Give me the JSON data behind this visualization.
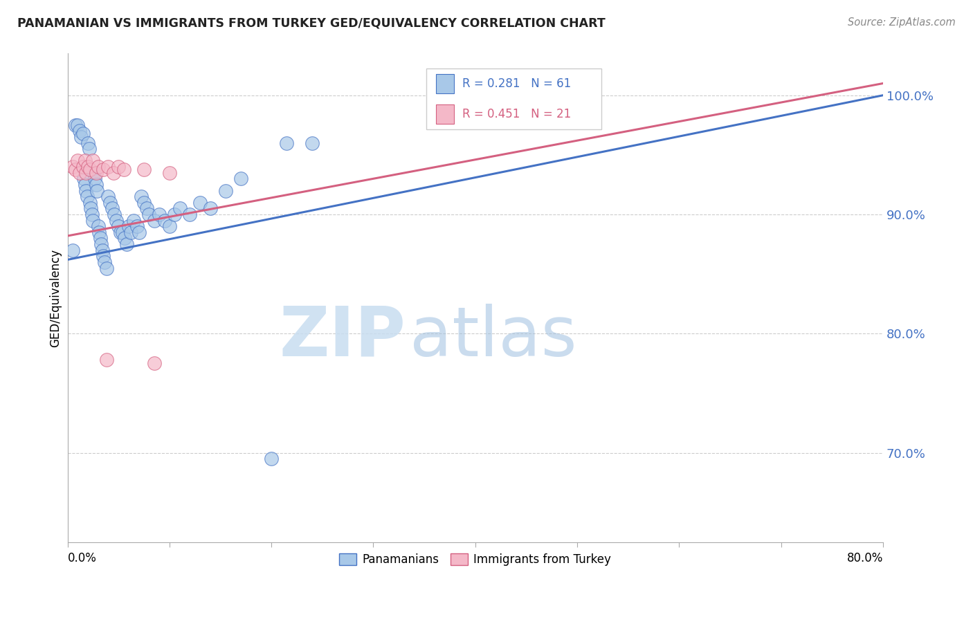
{
  "title": "PANAMANIAN VS IMMIGRANTS FROM TURKEY GED/EQUIVALENCY CORRELATION CHART",
  "source": "Source: ZipAtlas.com",
  "ylabel": "GED/Equivalency",
  "xlim": [
    0.0,
    0.8
  ],
  "ylim": [
    0.625,
    1.035
  ],
  "yticks": [
    0.7,
    0.8,
    0.9,
    1.0
  ],
  "ytick_labels": [
    "70.0%",
    "80.0%",
    "90.0%",
    "100.0%"
  ],
  "blue_color": "#a8c8e8",
  "pink_color": "#f4b8c8",
  "blue_line_color": "#4472c4",
  "pink_line_color": "#d46080",
  "blue_points_x": [
    0.005,
    0.008,
    0.01,
    0.012,
    0.013,
    0.015,
    0.016,
    0.017,
    0.018,
    0.019,
    0.02,
    0.021,
    0.022,
    0.023,
    0.024,
    0.025,
    0.026,
    0.027,
    0.028,
    0.029,
    0.03,
    0.031,
    0.032,
    0.033,
    0.034,
    0.035,
    0.036,
    0.038,
    0.04,
    0.042,
    0.044,
    0.046,
    0.048,
    0.05,
    0.052,
    0.054,
    0.056,
    0.058,
    0.06,
    0.062,
    0.065,
    0.068,
    0.07,
    0.072,
    0.075,
    0.078,
    0.08,
    0.085,
    0.09,
    0.095,
    0.1,
    0.105,
    0.11,
    0.12,
    0.13,
    0.14,
    0.155,
    0.17,
    0.2,
    0.215,
    0.24
  ],
  "blue_points_y": [
    0.87,
    0.975,
    0.975,
    0.97,
    0.965,
    0.968,
    0.93,
    0.925,
    0.92,
    0.915,
    0.96,
    0.955,
    0.91,
    0.905,
    0.9,
    0.895,
    0.935,
    0.93,
    0.925,
    0.92,
    0.89,
    0.885,
    0.88,
    0.875,
    0.87,
    0.865,
    0.86,
    0.855,
    0.915,
    0.91,
    0.905,
    0.9,
    0.895,
    0.89,
    0.885,
    0.885,
    0.88,
    0.875,
    0.89,
    0.885,
    0.895,
    0.89,
    0.885,
    0.915,
    0.91,
    0.905,
    0.9,
    0.895,
    0.9,
    0.895,
    0.89,
    0.9,
    0.905,
    0.9,
    0.91,
    0.905,
    0.92,
    0.93,
    0.695,
    0.96,
    0.96
  ],
  "pink_points_x": [
    0.005,
    0.008,
    0.01,
    0.012,
    0.015,
    0.017,
    0.018,
    0.02,
    0.022,
    0.025,
    0.028,
    0.03,
    0.035,
    0.038,
    0.04,
    0.045,
    0.05,
    0.055,
    0.075,
    0.085,
    0.1
  ],
  "pink_points_y": [
    0.94,
    0.938,
    0.945,
    0.935,
    0.94,
    0.945,
    0.935,
    0.94,
    0.938,
    0.945,
    0.935,
    0.94,
    0.938,
    0.778,
    0.94,
    0.935,
    0.94,
    0.938,
    0.938,
    0.775,
    0.935
  ],
  "blue_trendline_x": [
    0.0,
    0.8
  ],
  "blue_trendline_y": [
    0.862,
    1.0
  ],
  "pink_trendline_x": [
    0.0,
    0.8
  ],
  "pink_trendline_y": [
    0.882,
    1.01
  ],
  "xtick_positions": [
    0.0,
    0.1,
    0.2,
    0.3,
    0.4,
    0.5,
    0.6,
    0.7,
    0.8
  ],
  "watermark_zip_color": "#c8ddf0",
  "watermark_atlas_color": "#a0c0e0",
  "background_color": "#ffffff",
  "grid_color": "#cccccc",
  "legend_label1": "Panamanians",
  "legend_label2": "Immigrants from Turkey",
  "legend_r1": "R = 0.281",
  "legend_n1": "N = 61",
  "legend_r2": "R = 0.451",
  "legend_n2": "N = 21"
}
